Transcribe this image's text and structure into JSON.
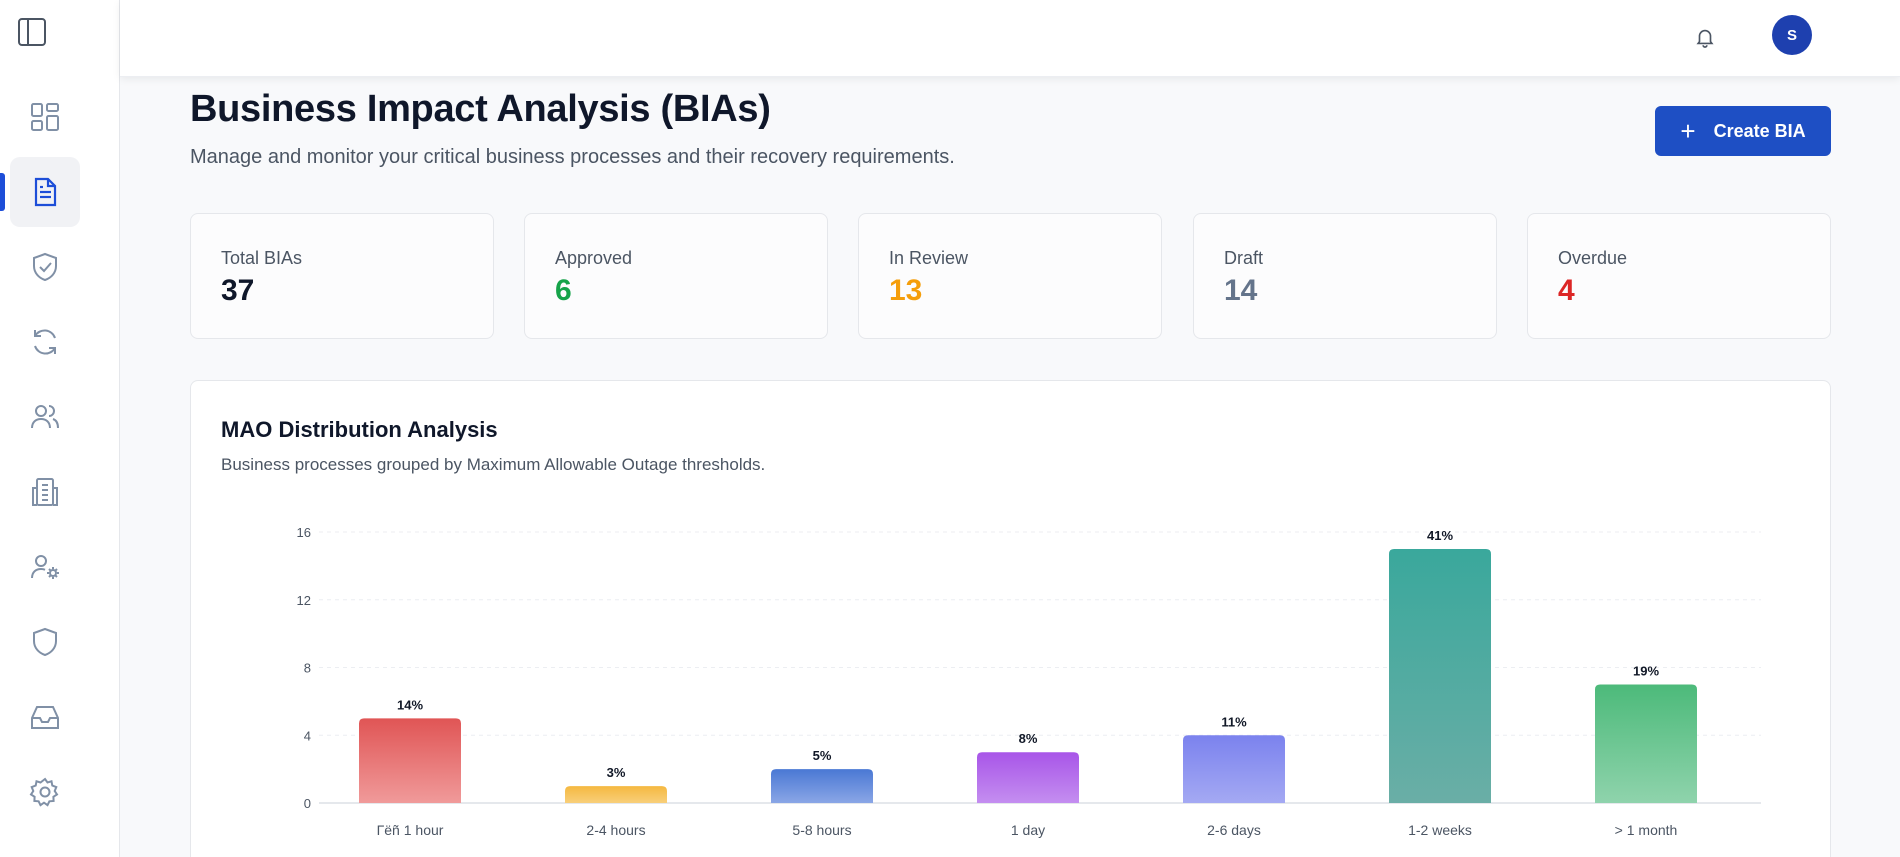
{
  "header": {
    "avatar_initial": "S"
  },
  "page": {
    "title": "Business Impact Analysis (BIAs)",
    "subtitle": "Manage and monitor your critical business processes and their recovery requirements.",
    "create_button_label": "Create BIA"
  },
  "stats": [
    {
      "label": "Total BIAs",
      "value": "37",
      "color": "#0f172a"
    },
    {
      "label": "Approved",
      "value": "6",
      "color": "#16a34a"
    },
    {
      "label": "In Review",
      "value": "13",
      "color": "#f59e0b"
    },
    {
      "label": "Draft",
      "value": "14",
      "color": "#64748b"
    },
    {
      "label": "Overdue",
      "value": "4",
      "color": "#dc2626"
    }
  ],
  "chart": {
    "title": "MAO Distribution Analysis",
    "subtitle": "Business processes grouped by Maximum Allowable Outage thresholds."
  },
  "chart_data": {
    "type": "bar",
    "categories": [
      "Γëñ 1 hour",
      "2-4 hours",
      "5-8 hours",
      "1 day",
      "2-6 days",
      "1-2 weeks",
      "> 1 month"
    ],
    "values": [
      5,
      1,
      2,
      3,
      4,
      15,
      7
    ],
    "data_labels": [
      "14%",
      "3%",
      "5%",
      "8%",
      "11%",
      "41%",
      "19%"
    ],
    "colors": [
      [
        "#e05555",
        "#f09a9a"
      ],
      [
        "#f5b840",
        "#f8cf7a"
      ],
      [
        "#4a78d4",
        "#8aa6e6"
      ],
      [
        "#a855e8",
        "#c48ef0"
      ],
      [
        "#7b82ee",
        "#a4a9f3"
      ],
      [
        "#3aa89c",
        "#6aaea6"
      ],
      [
        "#4cba7a",
        "#8fd3ac"
      ]
    ],
    "y_ticks": [
      0,
      4,
      8,
      12,
      16
    ],
    "ylim": [
      0,
      16
    ],
    "grid": true
  },
  "sidebar": {
    "icons": [
      "dashboard-icon",
      "document-icon",
      "shield-check-icon",
      "refresh-icon",
      "users-icon",
      "building-icon",
      "user-settings-icon",
      "shield-icon",
      "inbox-icon",
      "gear-icon"
    ]
  }
}
